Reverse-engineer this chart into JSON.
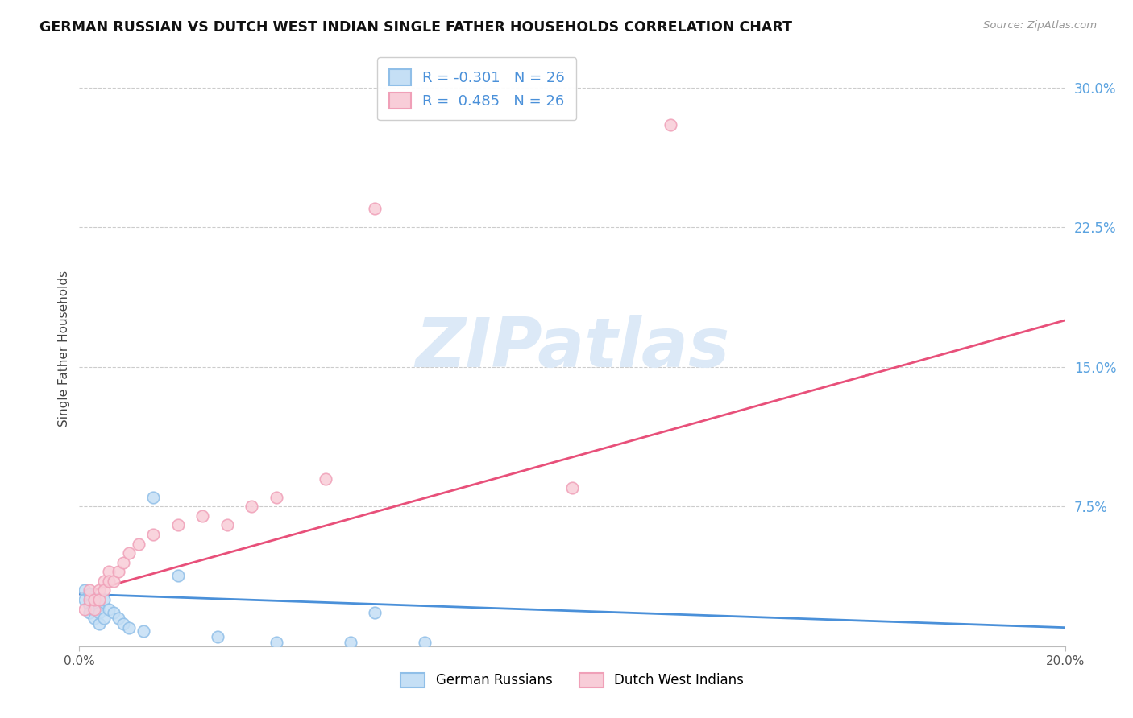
{
  "title": "GERMAN RUSSIAN VS DUTCH WEST INDIAN SINGLE FATHER HOUSEHOLDS CORRELATION CHART",
  "source": "Source: ZipAtlas.com",
  "ylabel": "Single Father Households",
  "xlim": [
    0.0,
    0.2
  ],
  "ylim": [
    0.0,
    0.32
  ],
  "ytick_vals": [
    0.0,
    0.075,
    0.15,
    0.225,
    0.3
  ],
  "ytick_labels": [
    "",
    "7.5%",
    "15.0%",
    "22.5%",
    "30.0%"
  ],
  "xtick_vals": [
    0.0,
    0.2
  ],
  "xtick_labels": [
    "0.0%",
    "20.0%"
  ],
  "legend_R1": "-0.301",
  "legend_N1": "26",
  "legend_R2": "0.485",
  "legend_N2": "26",
  "gr_x": [
    0.001,
    0.001,
    0.002,
    0.002,
    0.002,
    0.003,
    0.003,
    0.003,
    0.004,
    0.004,
    0.004,
    0.005,
    0.005,
    0.006,
    0.007,
    0.008,
    0.009,
    0.01,
    0.013,
    0.015,
    0.02,
    0.028,
    0.04,
    0.055,
    0.06,
    0.07
  ],
  "gr_y": [
    0.03,
    0.025,
    0.028,
    0.022,
    0.018,
    0.025,
    0.02,
    0.015,
    0.022,
    0.018,
    0.012,
    0.025,
    0.015,
    0.02,
    0.018,
    0.015,
    0.012,
    0.01,
    0.008,
    0.08,
    0.038,
    0.005,
    0.002,
    0.002,
    0.018,
    0.002
  ],
  "dwi_x": [
    0.001,
    0.002,
    0.002,
    0.003,
    0.003,
    0.004,
    0.004,
    0.005,
    0.005,
    0.006,
    0.006,
    0.007,
    0.008,
    0.009,
    0.01,
    0.012,
    0.015,
    0.02,
    0.025,
    0.03,
    0.035,
    0.04,
    0.05,
    0.06,
    0.1,
    0.12
  ],
  "dwi_y": [
    0.02,
    0.025,
    0.03,
    0.02,
    0.025,
    0.03,
    0.025,
    0.035,
    0.03,
    0.04,
    0.035,
    0.035,
    0.04,
    0.045,
    0.05,
    0.055,
    0.06,
    0.065,
    0.07,
    0.065,
    0.075,
    0.08,
    0.09,
    0.235,
    0.085,
    0.28
  ],
  "blue_face": "#c5dff5",
  "blue_edge": "#90bfe8",
  "pink_face": "#f8cdd8",
  "pink_edge": "#f0a0b8",
  "blue_line": "#4a90d9",
  "pink_line": "#e8507a",
  "grid_color": "#cccccc",
  "tick_color": "#5ba3e0",
  "bg": "#ffffff",
  "watermark_color": "#dce9f7",
  "pink_line_start_y": 0.028,
  "pink_line_end_y": 0.175,
  "blue_line_start_y": 0.028,
  "blue_line_end_y": 0.01
}
